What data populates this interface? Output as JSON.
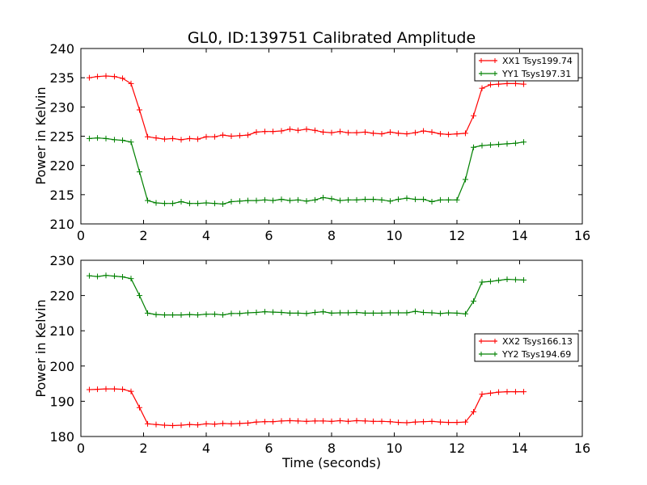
{
  "chart_data": [
    {
      "type": "line",
      "title": "GL0, ID:139751 Calibrated Amplitude",
      "xlabel": "",
      "ylabel": "Power in Kelvin",
      "xlim": [
        0,
        16
      ],
      "ylim": [
        210,
        240
      ],
      "xticks": [
        "0",
        "2",
        "4",
        "6",
        "8",
        "10",
        "12",
        "14",
        "16"
      ],
      "yticks": [
        "210",
        "215",
        "220",
        "225",
        "230",
        "235",
        "240"
      ],
      "grid": false,
      "legend_position": "top-right",
      "x": [
        0.27,
        0.53,
        0.8,
        1.07,
        1.33,
        1.6,
        1.87,
        2.13,
        2.4,
        2.67,
        2.93,
        3.2,
        3.47,
        3.73,
        4.0,
        4.27,
        4.53,
        4.8,
        5.07,
        5.33,
        5.6,
        5.87,
        6.13,
        6.4,
        6.67,
        6.93,
        7.2,
        7.47,
        7.73,
        8.0,
        8.27,
        8.53,
        8.8,
        9.07,
        9.33,
        9.6,
        9.87,
        10.13,
        10.4,
        10.67,
        10.93,
        11.2,
        11.47,
        11.73,
        12.0,
        12.27,
        12.53,
        12.8,
        13.07,
        13.33,
        13.6,
        13.87,
        14.13
      ],
      "series": [
        {
          "name": "XX1 Tsys199.74",
          "color": "#ff0000",
          "values": [
            235.0,
            235.2,
            235.3,
            235.2,
            234.9,
            234.0,
            229.5,
            224.9,
            224.7,
            224.5,
            224.6,
            224.4,
            224.6,
            224.5,
            224.9,
            224.9,
            225.2,
            225.0,
            225.1,
            225.2,
            225.7,
            225.8,
            225.8,
            225.9,
            226.2,
            226.0,
            226.2,
            226.0,
            225.7,
            225.6,
            225.8,
            225.6,
            225.6,
            225.7,
            225.5,
            225.4,
            225.7,
            225.5,
            225.4,
            225.6,
            225.9,
            225.7,
            225.4,
            225.3,
            225.4,
            225.5,
            228.5,
            233.2,
            233.8,
            233.9,
            234.0,
            234.0,
            233.9
          ]
        },
        {
          "name": "YY1 Tsys197.31",
          "color": "#008000",
          "values": [
            224.6,
            224.7,
            224.6,
            224.4,
            224.3,
            224.0,
            218.9,
            214.0,
            213.6,
            213.5,
            213.5,
            213.8,
            213.5,
            213.5,
            213.6,
            213.5,
            213.4,
            213.8,
            213.9,
            214.0,
            214.0,
            214.1,
            214.0,
            214.2,
            214.0,
            214.1,
            213.9,
            214.1,
            214.5,
            214.3,
            214.0,
            214.1,
            214.1,
            214.2,
            214.2,
            214.1,
            213.9,
            214.2,
            214.4,
            214.2,
            214.2,
            213.8,
            214.1,
            214.1,
            214.1,
            217.6,
            223.1,
            223.4,
            223.5,
            223.6,
            223.7,
            223.8,
            224.0
          ]
        }
      ]
    },
    {
      "type": "line",
      "title": "",
      "xlabel": "Time (seconds)",
      "ylabel": "Power in Kelvin",
      "xlim": [
        0,
        16
      ],
      "ylim": [
        180,
        230
      ],
      "xticks": [
        "0",
        "2",
        "4",
        "6",
        "8",
        "10",
        "12",
        "14",
        "16"
      ],
      "yticks": [
        "180",
        "190",
        "200",
        "210",
        "220",
        "230"
      ],
      "grid": false,
      "legend_position": "center-right",
      "x": [
        0.27,
        0.53,
        0.8,
        1.07,
        1.33,
        1.6,
        1.87,
        2.13,
        2.4,
        2.67,
        2.93,
        3.2,
        3.47,
        3.73,
        4.0,
        4.27,
        4.53,
        4.8,
        5.07,
        5.33,
        5.6,
        5.87,
        6.13,
        6.4,
        6.67,
        6.93,
        7.2,
        7.47,
        7.73,
        8.0,
        8.27,
        8.53,
        8.8,
        9.07,
        9.33,
        9.6,
        9.87,
        10.13,
        10.4,
        10.67,
        10.93,
        11.2,
        11.47,
        11.73,
        12.0,
        12.27,
        12.53,
        12.8,
        13.07,
        13.33,
        13.6,
        13.87,
        14.13
      ],
      "series": [
        {
          "name": "XX2 Tsys166.13",
          "color": "#ff0000",
          "values": [
            193.3,
            193.4,
            193.5,
            193.5,
            193.4,
            192.8,
            188.2,
            183.6,
            183.4,
            183.2,
            183.1,
            183.2,
            183.4,
            183.3,
            183.6,
            183.5,
            183.7,
            183.6,
            183.7,
            183.8,
            184.1,
            184.2,
            184.2,
            184.4,
            184.5,
            184.4,
            184.3,
            184.4,
            184.4,
            184.3,
            184.5,
            184.3,
            184.5,
            184.4,
            184.3,
            184.3,
            184.2,
            184.0,
            183.9,
            184.1,
            184.2,
            184.3,
            184.1,
            184.0,
            184.0,
            184.1,
            187.0,
            192.0,
            192.3,
            192.6,
            192.7,
            192.7,
            192.7
          ]
        },
        {
          "name": "YY2 Tsys194.69",
          "color": "#008000",
          "values": [
            225.6,
            225.4,
            225.7,
            225.5,
            225.3,
            224.8,
            220.0,
            215.0,
            214.6,
            214.5,
            214.5,
            214.5,
            214.6,
            214.5,
            214.7,
            214.7,
            214.5,
            214.9,
            214.9,
            215.1,
            215.2,
            215.4,
            215.3,
            215.2,
            215.0,
            215.0,
            214.9,
            215.2,
            215.4,
            215.0,
            215.1,
            215.1,
            215.2,
            215.0,
            215.0,
            215.0,
            215.1,
            215.1,
            215.1,
            215.5,
            215.2,
            215.1,
            214.9,
            215.1,
            215.0,
            214.8,
            218.4,
            223.8,
            224.0,
            224.3,
            224.6,
            224.5,
            224.4
          ]
        }
      ]
    }
  ]
}
